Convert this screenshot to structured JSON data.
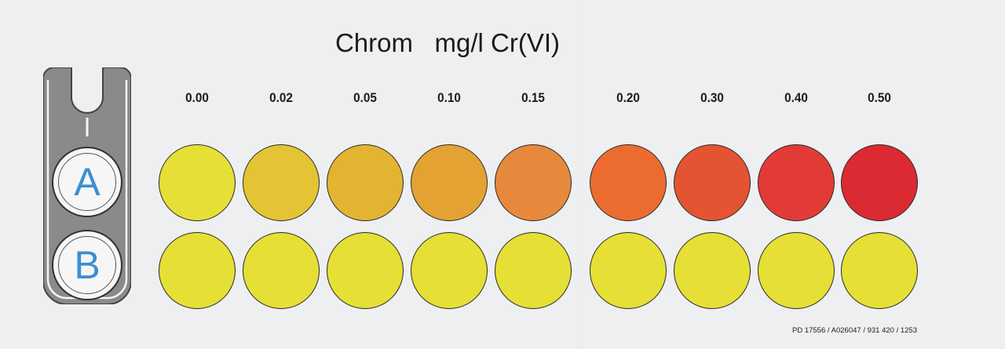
{
  "title": {
    "element": "Chrom",
    "unit": "mg/l Cr(VI)"
  },
  "holder": {
    "row_a_label": "A",
    "row_b_label": "B"
  },
  "scale": [
    {
      "value": "0.00",
      "row_a_color": "#e6df35",
      "row_b_color": "#e6df35"
    },
    {
      "value": "0.02",
      "row_a_color": "#e4c435",
      "row_b_color": "#e6df35"
    },
    {
      "value": "0.05",
      "row_a_color": "#e3b432",
      "row_b_color": "#e6df35"
    },
    {
      "value": "0.10",
      "row_a_color": "#e3a232",
      "row_b_color": "#e6df35"
    },
    {
      "value": "0.15",
      "row_a_color": "#e7893d",
      "row_b_color": "#e6df35"
    },
    {
      "value": "0.20",
      "row_a_color": "#ec6c30",
      "row_b_color": "#e6df35"
    },
    {
      "value": "0.30",
      "row_a_color": "#e45433",
      "row_b_color": "#e6df35"
    },
    {
      "value": "0.40",
      "row_a_color": "#e23b37",
      "row_b_color": "#e6df35"
    },
    {
      "value": "0.50",
      "row_a_color": "#dc2a33",
      "row_b_color": "#e6df35"
    }
  ],
  "footer_code": "PD 17556 / A026047 / 931 420 / 1253"
}
